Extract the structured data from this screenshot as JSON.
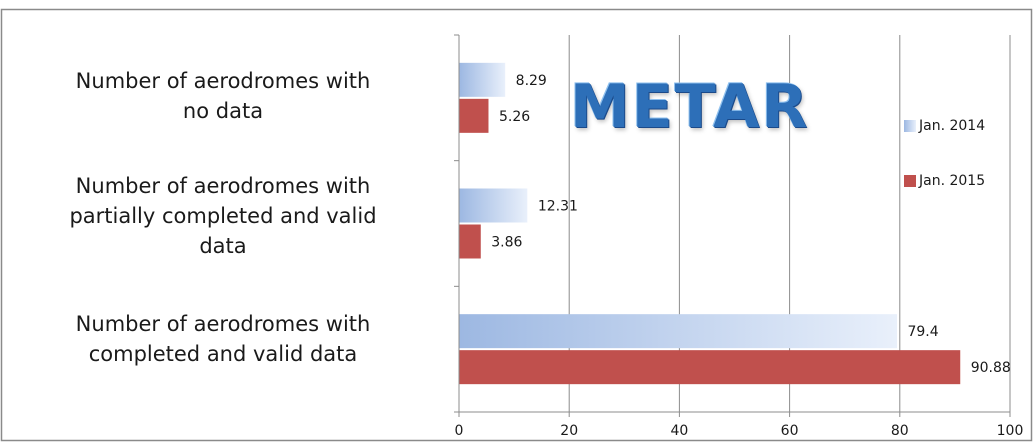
{
  "chart_data": {
    "type": "bar",
    "orientation": "horizontal",
    "title": "METAR",
    "categories": [
      "Number of aerodromes with no data",
      "Number of aerodromes with partially completed and valid data",
      "Number of aerodromes with completed and valid data"
    ],
    "category_lines": [
      [
        "Number of aerodromes with",
        "no data"
      ],
      [
        "Number of aerodromes with",
        "partially completed and valid",
        "data"
      ],
      [
        "Number of aerodromes with",
        "completed and valid data"
      ]
    ],
    "series": [
      {
        "name": "Jan. 2014",
        "values": [
          8.29,
          12.31,
          79.4
        ],
        "color": "#9cb9e4"
      },
      {
        "name": "Jan. 2015",
        "values": [
          5.26,
          3.86,
          90.88
        ],
        "color": "#c0504d"
      }
    ],
    "data_labels": [
      [
        "8.29",
        "12.31",
        "79.4"
      ],
      [
        "5.26",
        "3.86",
        "90.88"
      ]
    ],
    "xlim": [
      0,
      100
    ],
    "xticks": [
      0,
      20,
      40,
      60,
      80,
      100
    ],
    "xlabel": "",
    "ylabel": "",
    "grid": "vertical",
    "legend_position": "right"
  }
}
